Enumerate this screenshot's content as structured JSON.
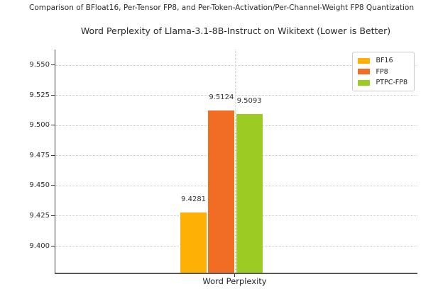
{
  "figure": {
    "background": "#ffffff"
  },
  "suptitle": "Comparison of BFloat16, Per-Tensor FP8, and Per-Token-Activation/Per-Channel-Weight FP8 Quantization",
  "chart_data": {
    "type": "bar",
    "title": "Word Perplexity of Llama-3.1-8B-Instruct on Wikitext (Lower is Better)",
    "categories": [
      "Word Perplexity"
    ],
    "series": [
      {
        "name": "BF16",
        "color": "#FFB005",
        "values": [
          9.4281
        ],
        "value_labels": [
          "9.4281"
        ]
      },
      {
        "name": "FP8",
        "color": "#F26D24",
        "values": [
          9.5124
        ],
        "value_labels": [
          "9.5124"
        ]
      },
      {
        "name": "PTPC-FP8",
        "color": "#9CCB22",
        "values": [
          9.5093
        ],
        "value_labels": [
          "9.5093"
        ]
      }
    ],
    "xlabel": "Word Perplexity",
    "ylabel": "",
    "ylim": [
      9.378,
      9.563
    ],
    "yticks": [
      9.4,
      9.425,
      9.45,
      9.475,
      9.5,
      9.525,
      9.55
    ],
    "ytick_labels": [
      "9.400",
      "9.425",
      "9.450",
      "9.475",
      "9.500",
      "9.525",
      "9.550"
    ],
    "grid": "dotted",
    "legend": {
      "position": "upper right",
      "items": [
        "BF16",
        "FP8",
        "PTPC-FP8"
      ]
    }
  }
}
